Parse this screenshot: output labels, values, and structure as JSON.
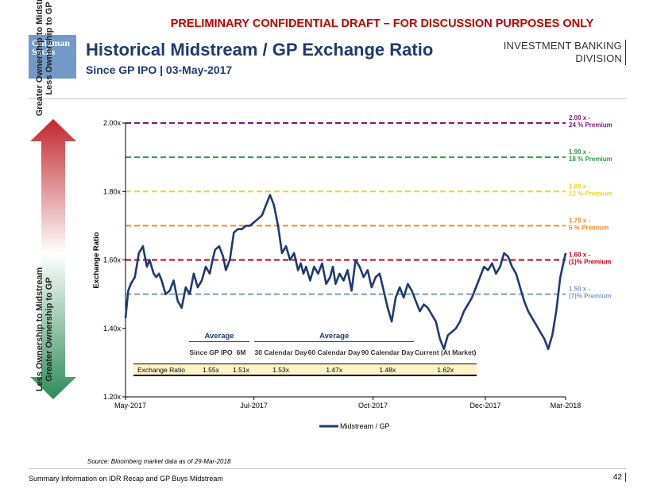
{
  "header": {
    "banner": "PRELIMINARY CONFIDENTIAL DRAFT – FOR DISCUSSION PURPOSES ONLY",
    "logo_line1": "Goldman",
    "logo_line2": "Sachs",
    "title": "Historical Midstream / GP Exchange Ratio",
    "subtitle": "Since GP IPO | 03-May-2017",
    "division_line1": "INVESTMENT BANKING",
    "division_line2": "DIVISION"
  },
  "side_arrow": {
    "top_line1": "Greater Ownership to Midstream",
    "top_line2": "Less Ownership to GP",
    "bottom_line1": "Less Ownership to Midstream",
    "bottom_line2": "Greater Ownership to GP",
    "colors": {
      "red": "#c0272d",
      "green": "#2e8b57"
    }
  },
  "chart_data": {
    "type": "line",
    "title": "",
    "ylabel": "Exchange Ratio",
    "xlabel": "",
    "ylim": [
      1.2,
      2.0
    ],
    "yticks": [
      1.2,
      1.4,
      1.6,
      1.8,
      2.0
    ],
    "ytick_labels": [
      "1.20x",
      "1.40x",
      "1.60x",
      "1.80x",
      "2.00x"
    ],
    "xlim": [
      0,
      329
    ],
    "xtick_pos": [
      0,
      96,
      185,
      269,
      329
    ],
    "xtick_labels": [
      "May-2017",
      "Jul-2017",
      "Oct-2017",
      "Dec-2017",
      "Mar-2018"
    ],
    "legend": "Midstream / GP",
    "legend_position": "bottom-center",
    "series": [
      {
        "name": "Midstream / GP",
        "color": "#1f3a6e",
        "x": [
          0,
          2,
          4,
          7,
          10,
          13,
          16,
          18,
          21,
          23,
          25,
          27,
          30,
          33,
          36,
          39,
          42,
          45,
          48,
          51,
          54,
          57,
          60,
          63,
          65,
          67,
          70,
          73,
          75,
          78,
          81,
          84,
          87,
          90,
          93,
          96,
          99,
          102,
          105,
          108,
          111,
          114,
          117,
          120,
          123,
          126,
          129,
          131,
          133,
          135,
          138,
          141,
          144,
          147,
          150,
          153,
          155,
          157,
          160,
          163,
          166,
          169,
          172,
          175,
          178,
          181,
          184,
          187,
          190,
          193,
          196,
          199,
          202,
          205,
          208,
          211,
          214,
          217,
          220,
          223,
          226,
          229,
          232,
          235,
          238,
          241,
          244,
          247,
          250,
          253,
          256,
          259,
          262,
          265,
          268,
          271,
          274,
          277,
          280,
          283,
          286,
          289,
          292,
          295,
          298,
          301,
          304,
          307,
          310,
          313,
          316,
          319,
          322,
          325,
          329
        ],
        "values": [
          1.43,
          1.51,
          1.53,
          1.55,
          1.62,
          1.64,
          1.58,
          1.6,
          1.56,
          1.55,
          1.56,
          1.54,
          1.5,
          1.51,
          1.54,
          1.48,
          1.46,
          1.52,
          1.5,
          1.56,
          1.52,
          1.54,
          1.58,
          1.56,
          1.6,
          1.63,
          1.64,
          1.61,
          1.57,
          1.6,
          1.68,
          1.69,
          1.69,
          1.7,
          1.7,
          1.71,
          1.72,
          1.73,
          1.76,
          1.79,
          1.76,
          1.7,
          1.62,
          1.64,
          1.6,
          1.62,
          1.57,
          1.59,
          1.56,
          1.58,
          1.54,
          1.58,
          1.56,
          1.59,
          1.53,
          1.55,
          1.58,
          1.53,
          1.56,
          1.54,
          1.57,
          1.51,
          1.6,
          1.58,
          1.55,
          1.57,
          1.52,
          1.55,
          1.56,
          1.51,
          1.46,
          1.42,
          1.49,
          1.52,
          1.49,
          1.53,
          1.51,
          1.48,
          1.45,
          1.47,
          1.46,
          1.44,
          1.42,
          1.37,
          1.34,
          1.38,
          1.39,
          1.4,
          1.42,
          1.45,
          1.47,
          1.49,
          1.52,
          1.55,
          1.58,
          1.57,
          1.59,
          1.56,
          1.58,
          1.62,
          1.61,
          1.58,
          1.56,
          1.52,
          1.48,
          1.45,
          1.43,
          1.41,
          1.39,
          1.37,
          1.34,
          1.38,
          1.45,
          1.55,
          1.62
        ],
        "x_note": "trading-day index from 03-May-2017"
      }
    ],
    "reference_lines": [
      {
        "value": 2.0,
        "label1": "2.00 x -",
        "label2": "24 % Premium",
        "color": "#7a1a7a"
      },
      {
        "value": 1.9,
        "label1": "1.90 x -",
        "label2": "18 % Premium",
        "color": "#2e9a4a"
      },
      {
        "value": 1.8,
        "label1": "1.80 x -",
        "label2": "12 % Premium",
        "color": "#f2d31c"
      },
      {
        "value": 1.7,
        "label1": "1.70 x -",
        "label2": "6 % Premium",
        "color": "#f08a24"
      },
      {
        "value": 1.6,
        "label1": "1.60 x -",
        "label2": "(1)% Premium",
        "color": "#c0001a"
      },
      {
        "value": 1.5,
        "label1": "1.50 x -",
        "label2": "(7)% Premium",
        "color": "#7a9cc6"
      }
    ]
  },
  "table": {
    "group1": "Average",
    "group2": "Average",
    "columns": [
      "Since GP IPO",
      "6M",
      "30 Calendar Day",
      "60 Calendar Day",
      "90 Calendar Day",
      "Current (At Market)"
    ],
    "row_label": "Exchange Ratio",
    "values": [
      "1.55x",
      "1.51x",
      "1.53x",
      "1.47x",
      "1.48x",
      "1.62x"
    ]
  },
  "footer": {
    "source": "Source: Bloomberg market data as of 29-Mar-2018",
    "left": "Summary Information on IDR Recap and GP Buys Midstream",
    "page": "42"
  }
}
